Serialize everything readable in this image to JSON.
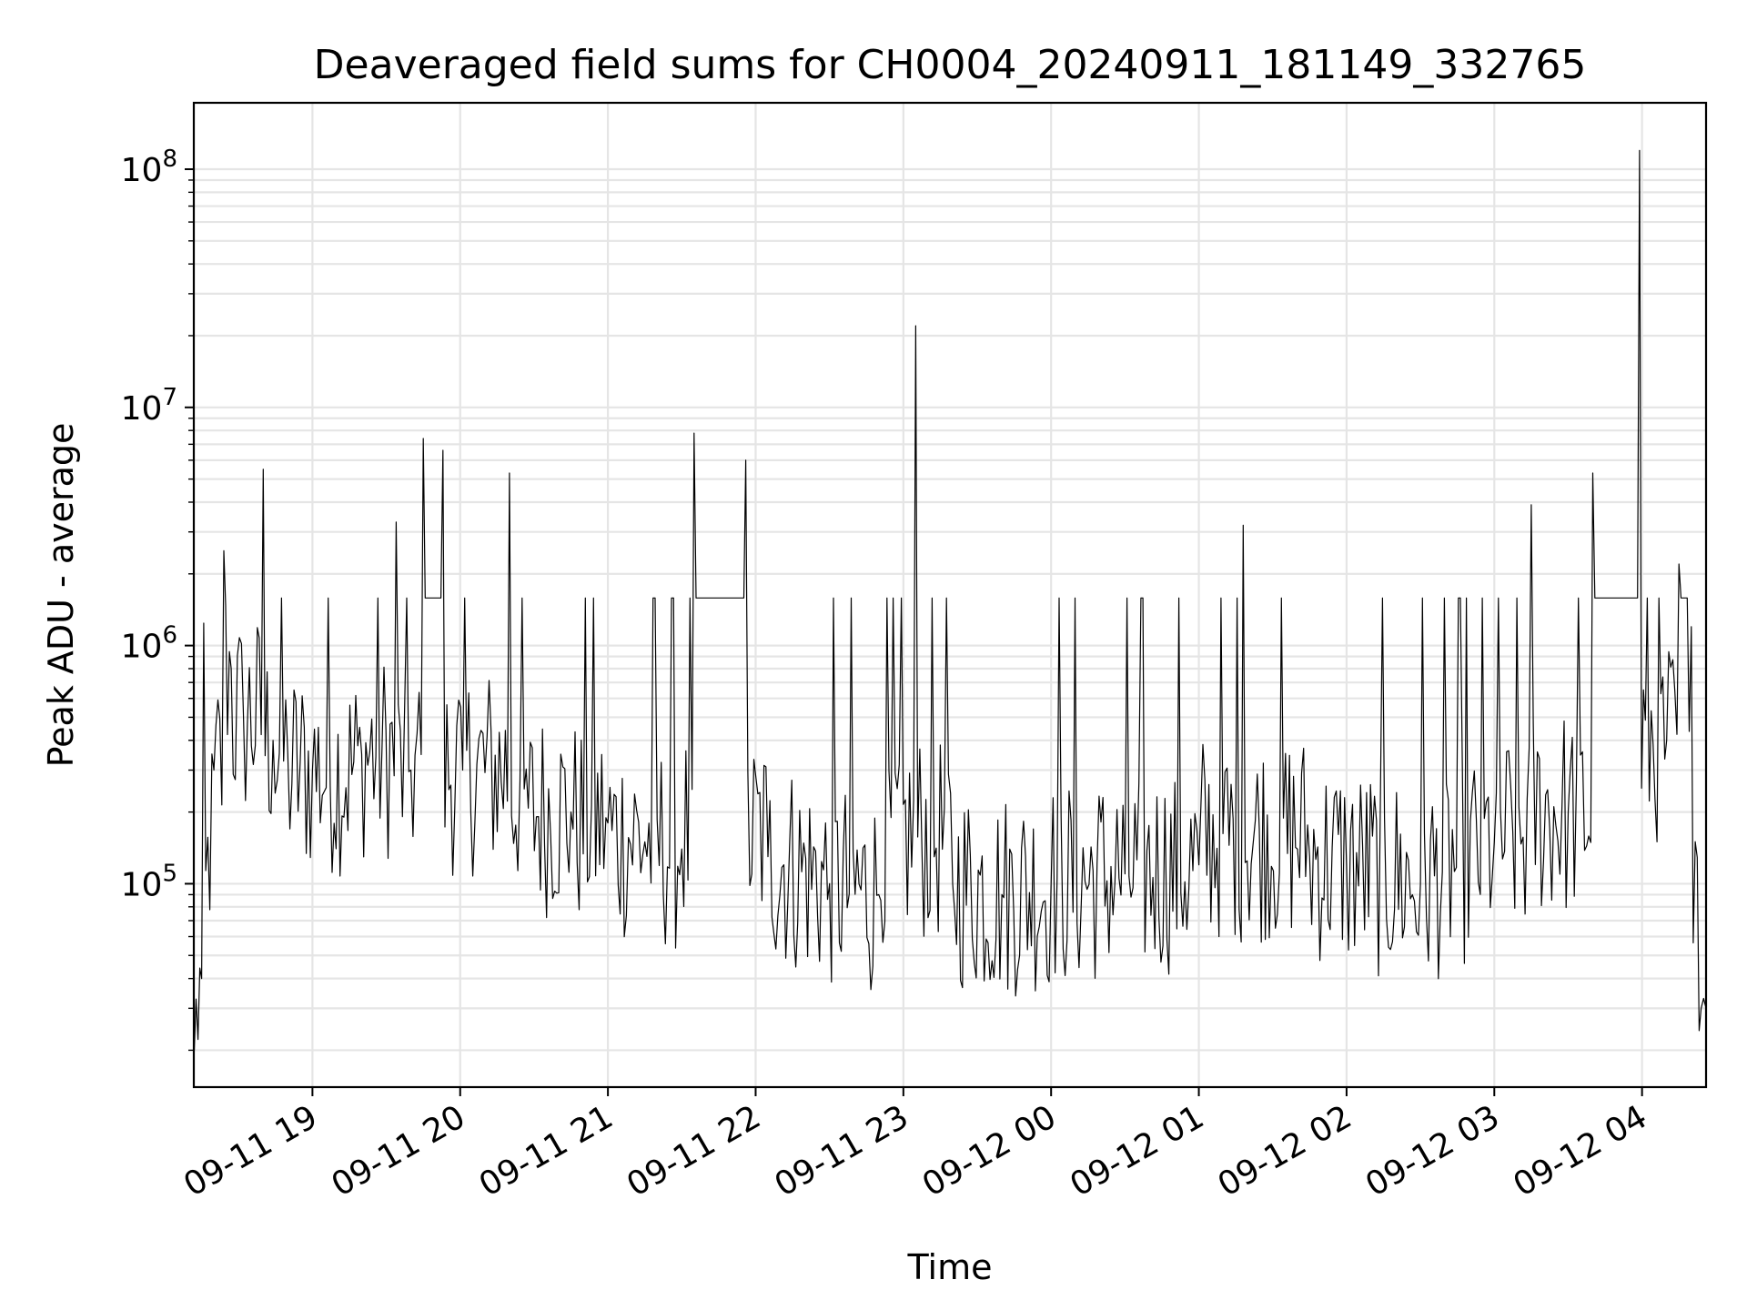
{
  "chart_data": {
    "type": "line",
    "title": "Deaveraged field sums for CH0004_20240911_181149_332765",
    "xlabel": "Time",
    "ylabel": "Peak ADU - average",
    "yscale": "log",
    "ylim": [
      14000,
      190000000
    ],
    "xlim": [
      "2024-09-11 18:11:49",
      "2024-09-12 04:26:00"
    ],
    "grid": true,
    "line_color": "#000000",
    "grid_color": "#e5e5e5",
    "x_ticks": [
      "09-11 19",
      "09-11 20",
      "09-11 21",
      "09-11 22",
      "09-11 23",
      "09-12 00",
      "09-12 01",
      "09-12 02",
      "09-12 03",
      "09-12 04"
    ],
    "y_ticks": [
      {
        "base": "10",
        "exp": "5",
        "value": 100000
      },
      {
        "base": "10",
        "exp": "6",
        "value": 1000000
      },
      {
        "base": "10",
        "exp": "7",
        "value": 10000000
      },
      {
        "base": "10",
        "exp": "8",
        "value": 100000000
      }
    ],
    "series": [
      {
        "x": [
          "2024-09-11 18:12",
          "2024-09-11 18:15",
          "2024-09-11 18:20",
          "2024-09-11 18:24",
          "2024-09-11 18:27",
          "2024-09-11 18:32",
          "2024-09-11 18:40",
          "2024-09-11 18:44",
          "2024-09-11 18:50",
          "2024-09-11 19:00",
          "2024-09-11 19:20",
          "2024-09-11 19:34",
          "2024-09-11 19:40",
          "2024-09-11 19:45",
          "2024-09-11 19:53",
          "2024-09-11 20:01",
          "2024-09-11 20:20",
          "2024-09-11 20:26",
          "2024-09-11 20:45",
          "2024-09-11 21:00",
          "2024-09-11 21:15",
          "2024-09-11 21:30",
          "2024-09-11 21:35",
          "2024-09-11 21:56",
          "2024-09-11 22:05",
          "2024-09-11 22:30",
          "2024-09-11 22:50",
          "2024-09-11 23:05",
          "2024-09-11 23:20",
          "2024-09-11 23:40",
          "2024-09-12 00:00",
          "2024-09-12 00:30",
          "2024-09-12 01:00",
          "2024-09-12 01:18",
          "2024-09-12 01:45",
          "2024-09-12 02:00",
          "2024-09-12 02:30",
          "2024-09-12 03:00",
          "2024-09-12 03:15",
          "2024-09-12 03:30",
          "2024-09-12 03:40",
          "2024-09-12 03:59",
          "2024-09-12 04:10",
          "2024-09-12 04:15",
          "2024-09-12 04:20",
          "2024-09-12 04:24",
          "2024-09-12 04:26"
        ],
        "y": [
          20000,
          40000,
          300000,
          2500000,
          800000,
          500000,
          5500000,
          400000,
          350000,
          300000,
          350000,
          3300000,
          300000,
          7400000,
          6600000,
          300000,
          5300000,
          250000,
          200000,
          180000,
          150000,
          140000,
          7800000,
          6000000,
          130000,
          100000,
          90000,
          22000000,
          100000,
          90000,
          100000,
          110000,
          120000,
          3200000,
          130000,
          120000,
          100000,
          150000,
          3900000,
          200000,
          5300000,
          120000000,
          400000,
          2200000,
          1200000,
          30000,
          30000
        ]
      }
    ]
  }
}
